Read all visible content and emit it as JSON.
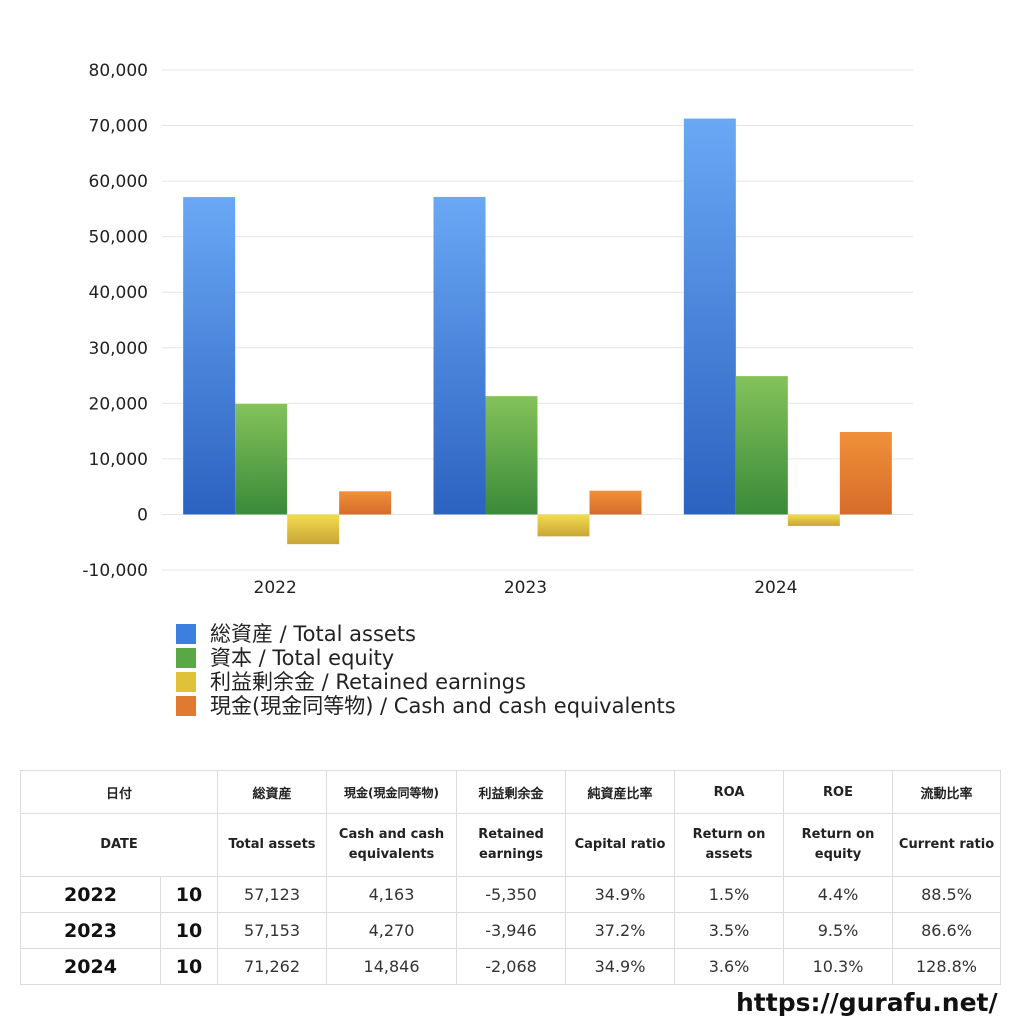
{
  "chart_data": {
    "type": "bar",
    "categories": [
      "2022",
      "2023",
      "2024"
    ],
    "series": [
      {
        "name": "総資産 / Total assets",
        "values": [
          57123,
          57153,
          71262
        ],
        "color": "#3d7fde"
      },
      {
        "name": "資本 / Total equity",
        "values": [
          19900,
          21300,
          24900
        ],
        "color": "#5aa845"
      },
      {
        "name": "利益剰余金 / Retained earnings",
        "values": [
          -5350,
          -3946,
          -2068
        ],
        "color": "#e0c23a"
      },
      {
        "name": "現金(現金同等物) / Cash and cash equivalents",
        "values": [
          4163,
          4270,
          14846
        ],
        "color": "#e07a30"
      }
    ],
    "ylim": [
      -10000,
      80000
    ],
    "yticks": [
      "80,000",
      "70,000",
      "60,000",
      "50,000",
      "40,000",
      "30,000",
      "20,000",
      "10,000",
      "0",
      "-10,000"
    ],
    "ytick_values": [
      80000,
      70000,
      60000,
      50000,
      40000,
      30000,
      20000,
      10000,
      0,
      -10000
    ],
    "grid": true,
    "legend_position": "bottom-left"
  },
  "table": {
    "headers_jp": [
      "日付",
      "総資産",
      "現金(現金同等物)",
      "利益剰余金",
      "純資産比率",
      "ROA",
      "ROE",
      "流動比率"
    ],
    "headers_en": [
      "DATE",
      "Total assets",
      "Cash and cash equivalents",
      "Retained earnings",
      "Capital ratio",
      "Return on assets",
      "Return on equity",
      "Current ratio"
    ],
    "rows": [
      {
        "year": "2022",
        "month": "10",
        "total_assets": "57,123",
        "cash": "4,163",
        "retained": "-5,350",
        "capital_ratio": "34.9%",
        "roa": "1.5%",
        "roe": "4.4%",
        "current_ratio": "88.5%"
      },
      {
        "year": "2023",
        "month": "10",
        "total_assets": "57,153",
        "cash": "4,270",
        "retained": "-3,946",
        "capital_ratio": "37.2%",
        "roa": "3.5%",
        "roe": "9.5%",
        "current_ratio": "86.6%"
      },
      {
        "year": "2024",
        "month": "10",
        "total_assets": "71,262",
        "cash": "14,846",
        "retained": "-2,068",
        "capital_ratio": "34.9%",
        "roa": "3.6%",
        "roe": "10.3%",
        "current_ratio": "128.8%"
      }
    ]
  },
  "site_url": "https://gurafu.net/"
}
